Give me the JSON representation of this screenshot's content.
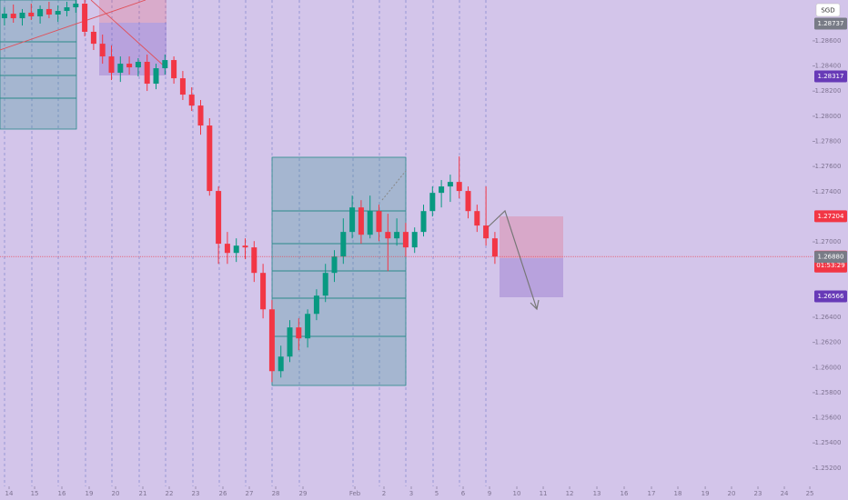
{
  "chart_data": {
    "type": "candlestick",
    "currency": "SGD",
    "up_color": "#089981",
    "down_color": "#f23645",
    "xlim": [
      -0.5,
      90.62
    ],
    "ylim": [
      1.25054,
      1.28925
    ],
    "xticks": [
      {
        "value": 0.52,
        "label": "14"
      },
      {
        "value": 3.38,
        "label": "15"
      },
      {
        "value": 6.44,
        "label": "16"
      },
      {
        "value": 9.5,
        "label": "19"
      },
      {
        "value": 12.46,
        "label": "20"
      },
      {
        "value": 15.52,
        "label": "21"
      },
      {
        "value": 18.48,
        "label": "22"
      },
      {
        "value": 21.44,
        "label": "23"
      },
      {
        "value": 24.5,
        "label": "26"
      },
      {
        "value": 27.46,
        "label": "27"
      },
      {
        "value": 30.42,
        "label": "28"
      },
      {
        "value": 33.48,
        "label": "29"
      },
      {
        "value": 39.3,
        "label": "Feb"
      },
      {
        "value": 42.56,
        "label": "2"
      },
      {
        "value": 45.62,
        "label": "3"
      },
      {
        "value": 48.48,
        "label": "5"
      },
      {
        "value": 51.44,
        "label": "6"
      },
      {
        "value": 54.4,
        "label": "9"
      },
      {
        "value": 57.46,
        "label": "10"
      },
      {
        "value": 60.42,
        "label": "11"
      },
      {
        "value": 63.38,
        "label": "12"
      },
      {
        "value": 66.44,
        "label": "13"
      },
      {
        "value": 69.5,
        "label": "16"
      },
      {
        "value": 72.56,
        "label": "17"
      },
      {
        "value": 75.52,
        "label": "18"
      },
      {
        "value": 78.59,
        "label": "19"
      },
      {
        "value": 81.54,
        "label": "20"
      },
      {
        "value": 84.5,
        "label": "23"
      },
      {
        "value": 87.46,
        "label": "24"
      },
      {
        "value": 90.32,
        "label": "25"
      }
    ],
    "yticks": [
      {
        "value": 1.286,
        "label": "1.28600"
      },
      {
        "value": 1.284,
        "label": "1.28400"
      },
      {
        "value": 1.282,
        "label": "1.28200"
      },
      {
        "value": 1.28,
        "label": "1.28000"
      },
      {
        "value": 1.278,
        "label": "1.27800"
      },
      {
        "value": 1.276,
        "label": "1.27600"
      },
      {
        "value": 1.274,
        "label": "1.27400"
      },
      {
        "value": 1.27,
        "label": "1.27000"
      },
      {
        "value": 1.264,
        "label": "1.26400"
      },
      {
        "value": 1.262,
        "label": "1.26200"
      },
      {
        "value": 1.26,
        "label": "1.26000"
      },
      {
        "value": 1.258,
        "label": "1.25800"
      },
      {
        "value": 1.256,
        "label": "1.25600"
      },
      {
        "value": 1.254,
        "label": "1.25400"
      },
      {
        "value": 1.252,
        "label": "1.25200"
      }
    ],
    "price_tags": [
      {
        "value": 1.28737,
        "label": "1.28737",
        "color": "#787b86"
      },
      {
        "value": 1.28317,
        "label": "1.28317",
        "color": "#673ab7"
      },
      {
        "value": 1.27204,
        "label": "1.27204",
        "color": "#f23645"
      },
      {
        "value": 1.26883,
        "label": "1.26883",
        "sublabel": "01:53:29",
        "color": "#f23645"
      },
      {
        "value": 1.2688,
        "label": "1.26880",
        "color": "#787b86"
      },
      {
        "value": 1.26566,
        "label": "1.26566",
        "color": "#673ab7"
      }
    ],
    "open": [
      1.2878,
      1.28816,
      1.2878,
      1.28824,
      1.28795,
      1.28853,
      1.28809,
      1.28838,
      1.28867,
      1.28896,
      1.28672,
      1.28577,
      1.28476,
      1.28346,
      1.28418,
      1.28389,
      1.28433,
      1.28259,
      1.28382,
      1.28447,
      1.28302,
      1.28172,
      1.28085,
      1.27926,
      1.27405,
      1.26985,
      1.26912,
      1.2697,
      1.26956,
      1.26753,
      1.26463,
      1.25971,
      1.26087,
      1.26319,
      1.26232,
      1.26427,
      1.26572,
      1.26753,
      1.26883,
      1.27079,
      1.27274,
      1.27057,
      1.27245,
      1.27079,
      1.27028,
      1.27079,
      1.26956,
      1.27079,
      1.27245,
      1.2739,
      1.27441,
      1.27477,
      1.27405,
      1.27245,
      1.2713,
      1.27028
    ],
    "high": [
      1.28867,
      1.28889,
      1.28853,
      1.28896,
      1.28882,
      1.28911,
      1.28882,
      1.28911,
      1.28925,
      1.28925,
      1.28722,
      1.2865,
      1.28563,
      1.28476,
      1.28476,
      1.28462,
      1.28491,
      1.28418,
      1.28491,
      1.28476,
      1.2836,
      1.2823,
      1.28129,
      1.27984,
      1.27441,
      1.27079,
      1.27028,
      1.27028,
      1.27006,
      1.26825,
      1.26536,
      1.26174,
      1.26377,
      1.26391,
      1.26463,
      1.26623,
      1.26825,
      1.26934,
      1.27187,
      1.27368,
      1.27332,
      1.27368,
      1.27296,
      1.27224,
      1.27187,
      1.27151,
      1.27115,
      1.27296,
      1.27441,
      1.27492,
      1.27535,
      1.2768,
      1.27441,
      1.27296,
      1.27441,
      1.27079
    ],
    "low": [
      1.28722,
      1.28744,
      1.28722,
      1.28766,
      1.28737,
      1.2878,
      1.28751,
      1.28795,
      1.28824,
      1.28635,
      1.28527,
      1.28418,
      1.28288,
      1.28273,
      1.28331,
      1.28317,
      1.28201,
      1.28215,
      1.28331,
      1.28259,
      1.28129,
      1.28042,
      1.27853,
      1.27368,
      1.26825,
      1.26825,
      1.2684,
      1.26862,
      1.26681,
      1.26391,
      1.25884,
      1.2592,
      1.26043,
      1.26138,
      1.26159,
      1.26377,
      1.26521,
      1.26681,
      1.26825,
      1.27028,
      1.26985,
      1.27028,
      1.27006,
      1.26767,
      1.2697,
      1.26883,
      1.26912,
      1.27043,
      1.27202,
      1.27274,
      1.27318,
      1.27347,
      1.27187,
      1.27079,
      1.2697,
      1.26825
    ],
    "close": [
      1.28816,
      1.2878,
      1.28824,
      1.28795,
      1.28853,
      1.28809,
      1.28838,
      1.28867,
      1.28896,
      1.28672,
      1.28577,
      1.28476,
      1.28346,
      1.28418,
      1.28389,
      1.28433,
      1.28259,
      1.28382,
      1.28447,
      1.28302,
      1.28172,
      1.28085,
      1.27926,
      1.27405,
      1.26985,
      1.26912,
      1.2697,
      1.26956,
      1.26753,
      1.26463,
      1.25971,
      1.26087,
      1.26319,
      1.26232,
      1.26427,
      1.26572,
      1.26753,
      1.26883,
      1.27079,
      1.27274,
      1.27057,
      1.27245,
      1.27079,
      1.27028,
      1.27079,
      1.26956,
      1.27079,
      1.27245,
      1.2739,
      1.27441,
      1.27477,
      1.27405,
      1.27245,
      1.2713,
      1.27028,
      1.26883
    ]
  }
}
